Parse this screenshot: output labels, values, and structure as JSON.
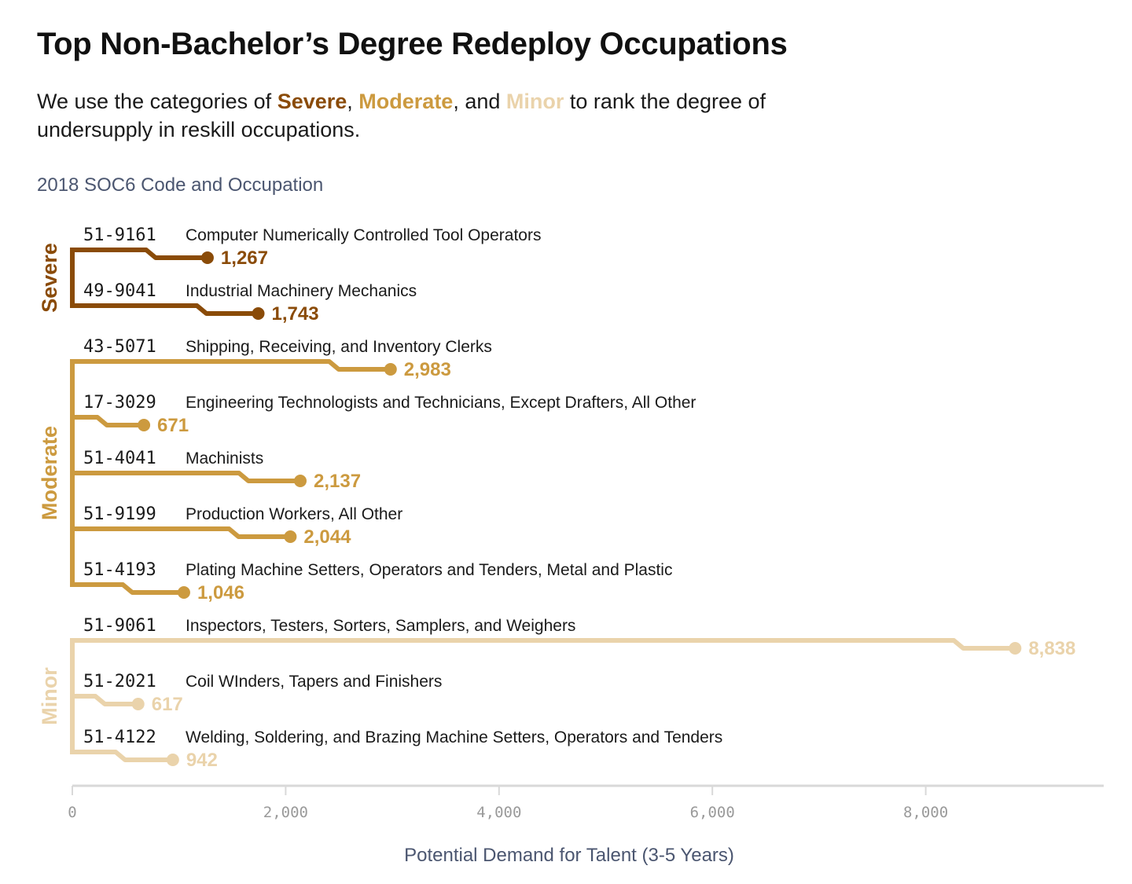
{
  "title": "Top Non-Bachelor’s Degree Redeploy Occupations",
  "subtitle": {
    "before": "We use the categories of ",
    "severe": "Severe",
    "sep1": ", ",
    "moderate": "Moderate",
    "sep2": ", and ",
    "minor": "Minor",
    "after": " to rank the degree of undersupply in reskill occupations."
  },
  "colors": {
    "severe": "#8a4b08",
    "moderate": "#cc9a3f",
    "minor": "#ead3ab",
    "axis": "#d9d9d9",
    "tick_text": "#9a9a9a",
    "caption": "#4b5670"
  },
  "chart_data": {
    "type": "bar",
    "title": "Top Non-Bachelor’s Degree Redeploy Occupations",
    "ylabel": "2018 SOC6 Code and Occupation",
    "xlabel": "Potential Demand for Talent (3-5 Years)",
    "xlim": [
      0,
      9600
    ],
    "xticks": [
      0,
      2000,
      4000,
      6000,
      8000
    ],
    "xtick_labels": [
      "0",
      "2,000",
      "4,000",
      "6,000",
      "8,000"
    ],
    "groups": [
      {
        "name": "Severe",
        "color_key": "severe",
        "items": [
          {
            "code": "51-9161",
            "occupation": "Computer Numerically Controlled Tool Operators",
            "value": 1267,
            "label": "1,267"
          },
          {
            "code": "49-9041",
            "occupation": "Industrial Machinery Mechanics",
            "value": 1743,
            "label": "1,743"
          }
        ]
      },
      {
        "name": "Moderate",
        "color_key": "moderate",
        "items": [
          {
            "code": "43-5071",
            "occupation": "Shipping, Receiving, and Inventory Clerks",
            "value": 2983,
            "label": "2,983"
          },
          {
            "code": "17-3029",
            "occupation": "Engineering Technologists and Technicians, Except Drafters, All Other",
            "value": 671,
            "label": "671"
          },
          {
            "code": "51-4041",
            "occupation": "Machinists",
            "value": 2137,
            "label": "2,137"
          },
          {
            "code": "51-9199",
            "occupation": "Production Workers, All Other",
            "value": 2044,
            "label": "2,044"
          },
          {
            "code": "51-4193",
            "occupation": "Plating Machine Setters, Operators and Tenders, Metal and Plastic",
            "value": 1046,
            "label": "1,046"
          }
        ]
      },
      {
        "name": "Minor",
        "color_key": "minor",
        "items": [
          {
            "code": "51-9061",
            "occupation": "Inspectors, Testers, Sorters, Samplers, and Weighers",
            "value": 8838,
            "label": "8,838"
          },
          {
            "code": "51-2021",
            "occupation": "Coil WInders, Tapers and Finishers",
            "value": 617,
            "label": "617"
          },
          {
            "code": "51-4122",
            "occupation": "Welding, Soldering, and Brazing Machine Setters, Operators and Tenders",
            "value": 942,
            "label": "942"
          }
        ]
      }
    ]
  }
}
